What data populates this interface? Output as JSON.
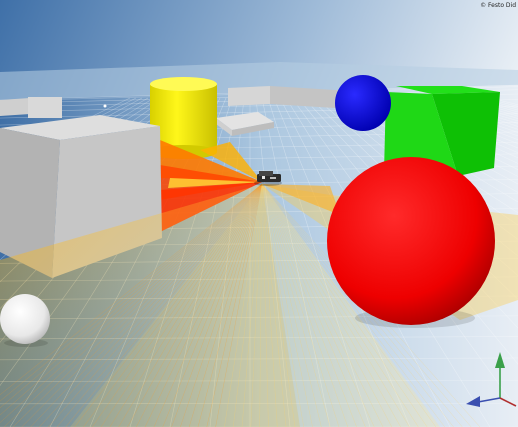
{
  "viewport": {
    "copyright": "© Festo Did"
  },
  "colors": {
    "sky_left": "#3f70a8",
    "sky_right": "#f2f5f9",
    "floor": "#cfe0ee",
    "cylinder": "#f4ee00",
    "sphere_blue": "#0c10ea",
    "cube_green": "#14d80a",
    "sphere_red": "#ff0000",
    "sphere_white": "#f2f2f2",
    "box_gray": "#c9c9c9",
    "sensor_hot": "#ff3a00",
    "sensor_warm": "#ffb000"
  },
  "scene_objects": {
    "gray_box": "box-icon",
    "yellow_cylinder": "cylinder-icon",
    "blue_sphere": "sphere-icon",
    "green_cube": "cube-icon",
    "red_sphere": "sphere-icon",
    "white_sphere": "sphere-icon",
    "robot": "robot-icon",
    "axis_gizmo": "axis-gizmo-icon"
  }
}
